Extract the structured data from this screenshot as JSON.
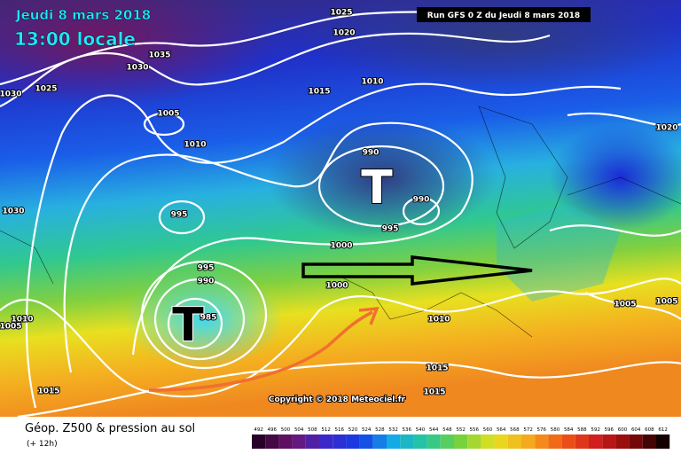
{
  "header": {
    "title": "Jeudi 8 mars 2018",
    "time": "13:00 locale",
    "run": "Run GFS 0 Z du Jeudi 8 mars 2018"
  },
  "isobar_labels": [
    "1025",
    "1020",
    "1035",
    "1030",
    "1030",
    "1025",
    "1015",
    "1010",
    "1005",
    "1010",
    "990",
    "990",
    "995",
    "995",
    "1000",
    "995",
    "990",
    "1000",
    "985",
    "1010",
    "1005",
    "1010",
    "1015",
    "1015",
    "1015",
    "1020",
    "1030",
    "1005",
    "1005"
  ],
  "lows": [
    "T",
    "T"
  ],
  "copyright": "Copyright © 2018 Meteociel.fr",
  "footer": {
    "title": "Géop. Z500 & pression au sol",
    "lead": "(+ 12h)"
  },
  "legend": [
    "492",
    "496",
    "500",
    "504",
    "508",
    "512",
    "516",
    "520",
    "524",
    "528",
    "532",
    "536",
    "540",
    "544",
    "548",
    "552",
    "556",
    "560",
    "564",
    "568",
    "572",
    "576",
    "580",
    "584",
    "588",
    "592",
    "596",
    "600",
    "604",
    "608",
    "612"
  ]
}
